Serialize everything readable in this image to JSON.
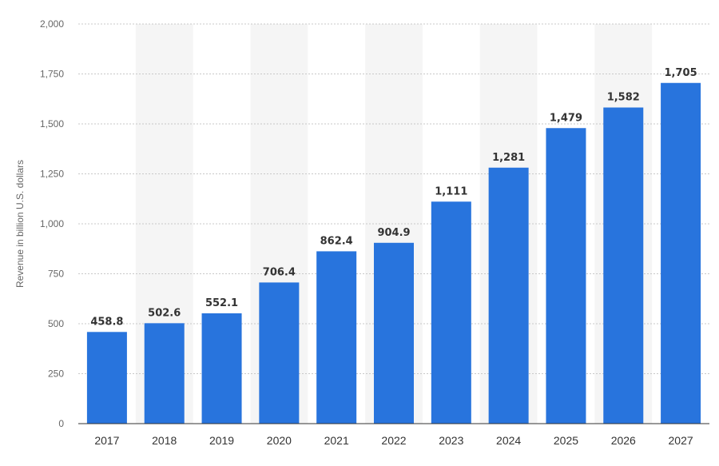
{
  "chart_data": {
    "type": "bar",
    "title": "",
    "xlabel": "",
    "ylabel": "Revenue in billion U.S. dollars",
    "categories": [
      "2017",
      "2018",
      "2019",
      "2020",
      "2021",
      "2022",
      "2023",
      "2024",
      "2025",
      "2026",
      "2027"
    ],
    "values": [
      458.8,
      502.6,
      552.1,
      706.4,
      862.4,
      904.9,
      1111,
      1281,
      1479,
      1582,
      1705
    ],
    "value_labels": [
      "458.8",
      "502.6",
      "552.1",
      "706.4",
      "862.4",
      "904.9",
      "1,111",
      "1,281",
      "1,479",
      "1,582",
      "1,705"
    ],
    "ylim": [
      0,
      2000
    ],
    "yticks": [
      0,
      250,
      500,
      750,
      1000,
      1250,
      1500,
      1750,
      2000
    ],
    "ytick_labels": [
      "0",
      "250",
      "500",
      "750",
      "1,000",
      "1,250",
      "1,500",
      "1,750",
      "2,000"
    ],
    "grid": true,
    "legend": "none",
    "bar_color": "#2874dd",
    "alternate_band_color": "#f5f5f5",
    "grid_color": "#c8c8c8",
    "axis_color": "#333333"
  }
}
